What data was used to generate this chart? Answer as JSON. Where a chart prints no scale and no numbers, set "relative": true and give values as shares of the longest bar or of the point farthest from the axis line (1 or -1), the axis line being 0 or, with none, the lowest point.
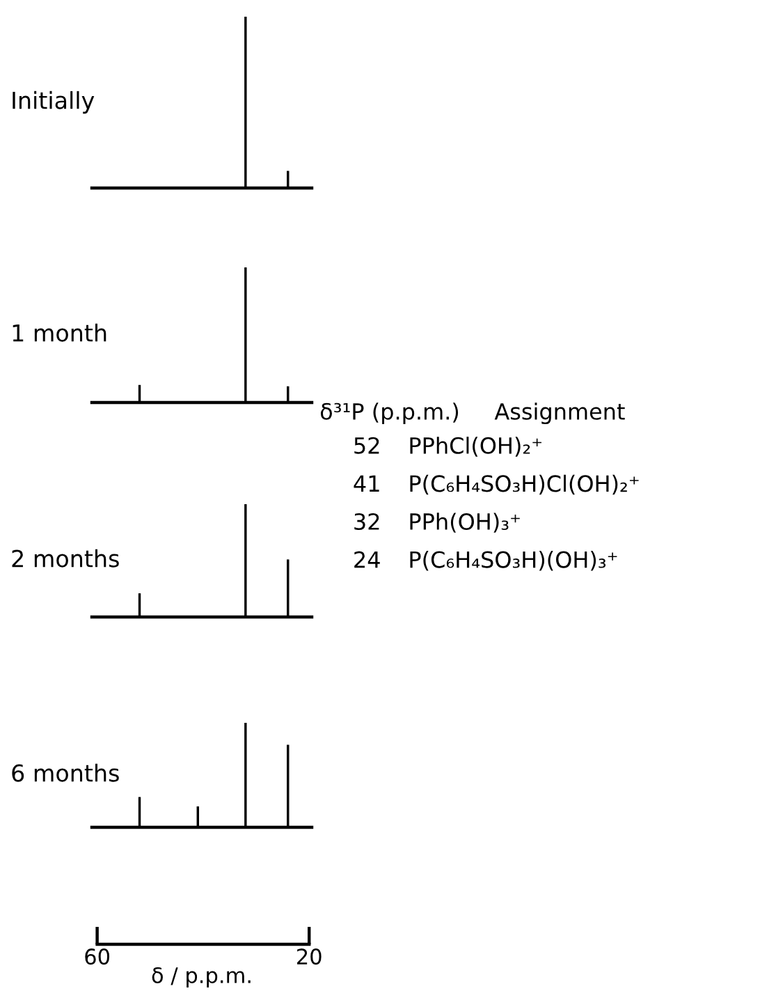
{
  "chart_data": [
    {
      "type": "bar",
      "title": "Initially",
      "x": [
        32,
        24
      ],
      "values": [
        1,
        0.1
      ],
      "color": "#000000",
      "relative": true,
      "xlim": [
        61,
        19.5
      ],
      "tick_labels": false
    },
    {
      "type": "bar",
      "title": "1 month",
      "x": [
        52,
        32,
        24
      ],
      "values": [
        0.13,
        1,
        0.12
      ],
      "color": "#000000",
      "relative": true,
      "xlim": [
        61,
        19.5
      ],
      "tick_labels": false
    },
    {
      "type": "bar",
      "title": "2 months",
      "x": [
        52,
        32,
        24
      ],
      "values": [
        0.21,
        1,
        0.51
      ],
      "color": "#000000",
      "relative": true,
      "xlim": [
        61,
        19.5
      ],
      "tick_labels": false
    },
    {
      "type": "bar",
      "title": "6 months",
      "x": [
        52,
        41,
        32,
        24
      ],
      "values": [
        0.29,
        0.2,
        1,
        0.79
      ],
      "color": "#000000",
      "relative": true,
      "xlim": [
        61,
        19.5
      ],
      "xticks": [
        60,
        20
      ],
      "xlabel": "δ / p.p.m.",
      "tick_labels": "x"
    },
    {
      "type": "other",
      "annotations": [
        "δ³¹P (p.p.m.)",
        "Assignment",
        "52",
        "PPhCl(OH)₂⁺",
        "41",
        "P(C₆H₄SO₃H)Cl(OH)₂⁺",
        "32",
        "PPh(OH)₃⁺",
        "24",
        "P(C₆H₄SO₃H)(OH)₃⁺"
      ]
    }
  ]
}
